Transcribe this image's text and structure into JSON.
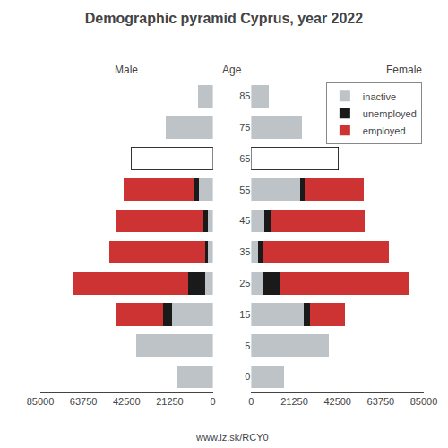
{
  "title": "Demographic pyramid Cyprus, year 2022",
  "subtitle": "www.iz.sk/RCY0",
  "annotations": [
    "Age"
  ],
  "chart_data": [
    {
      "type": "bar",
      "title": "Male",
      "orientation": "horizontal",
      "stacked": true,
      "categories": [
        0,
        5,
        15,
        25,
        35,
        45,
        55,
        65,
        75,
        85
      ],
      "series": [
        {
          "name": "inactive",
          "color": "#bdc3c7",
          "values": [
            18000,
            38000,
            20000,
            4000,
            2500,
            2500,
            7000,
            null,
            23000,
            7500
          ]
        },
        {
          "name": "unemployed",
          "color": "#1a1a1a",
          "values": [
            0,
            0,
            4500,
            8000,
            1500,
            2000,
            2000,
            null,
            0,
            0
          ]
        },
        {
          "name": "employed",
          "color": "#cd3333",
          "values": [
            0,
            0,
            23000,
            57000,
            47000,
            43000,
            35000,
            null,
            0,
            0
          ]
        },
        {
          "color": "#ffffff",
          "values": [
            null,
            null,
            null,
            null,
            null,
            null,
            null,
            40000,
            null,
            null
          ]
        }
      ],
      "xlim": [
        85000,
        0
      ],
      "xticks": [
        0,
        21250,
        42500,
        63750,
        85000
      ],
      "grid": false,
      "tick_labels": "x"
    },
    {
      "type": "bar",
      "title": "Female",
      "orientation": "horizontal",
      "stacked": true,
      "categories": [
        0,
        5,
        15,
        25,
        35,
        45,
        55,
        65,
        75,
        85
      ],
      "series": [
        {
          "name": "inactive",
          "color": "#bdc3c7",
          "values": [
            16000,
            38000,
            26000,
            6000,
            3500,
            6500,
            24000,
            null,
            25000,
            8500
          ]
        },
        {
          "name": "unemployed",
          "color": "#1a1a1a",
          "values": [
            0,
            0,
            3000,
            8500,
            2500,
            3500,
            2500,
            null,
            0,
            0
          ]
        },
        {
          "name": "employed",
          "color": "#cd3333",
          "values": [
            0,
            0,
            17000,
            63000,
            62000,
            46000,
            29000,
            null,
            0,
            0
          ]
        },
        {
          "color": "#ffffff",
          "values": [
            null,
            null,
            null,
            null,
            null,
            null,
            null,
            43000,
            null,
            null
          ]
        }
      ],
      "xlim": [
        0,
        85000
      ],
      "xticks": [
        0,
        21250,
        42500,
        63750,
        85000
      ],
      "grid": false,
      "legend": "upper right"
    }
  ]
}
